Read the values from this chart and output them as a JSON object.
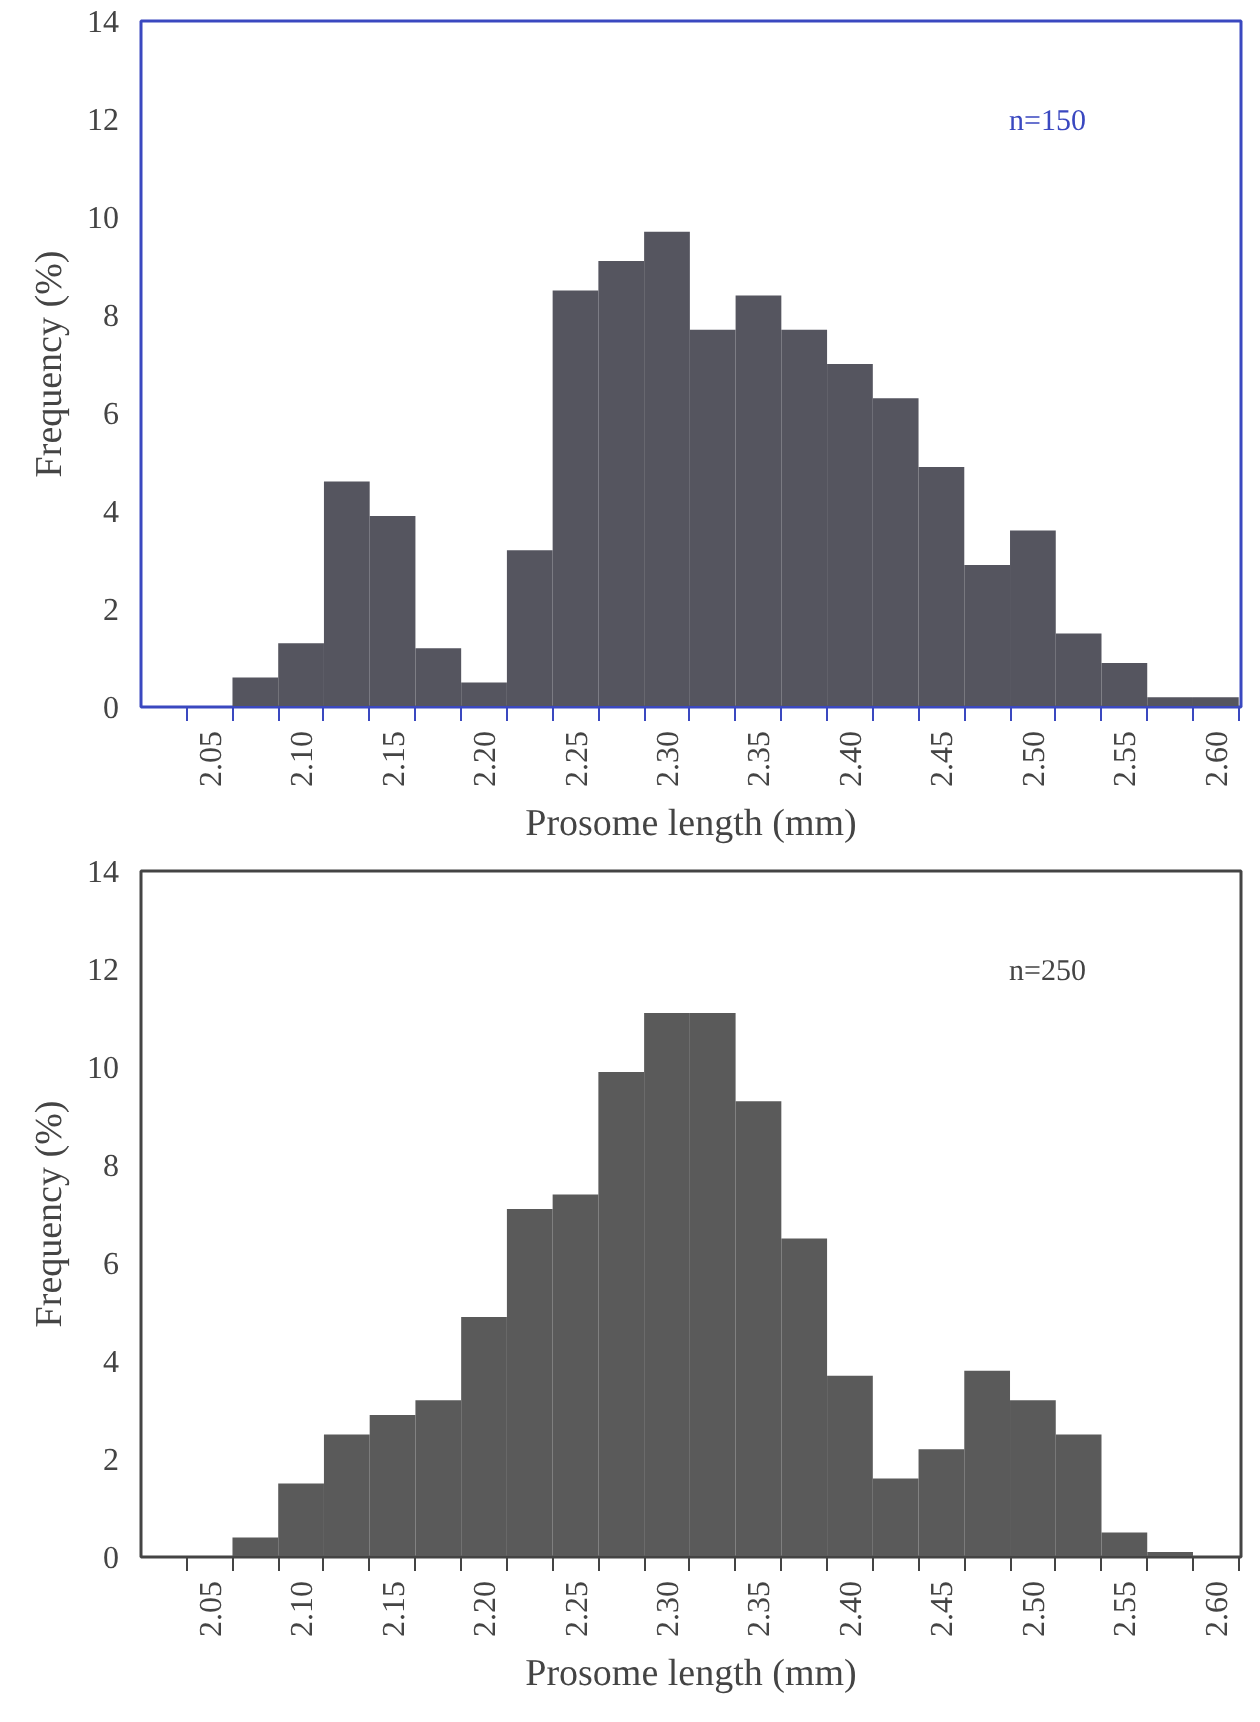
{
  "chart_data": [
    {
      "type": "bar",
      "xlabel": "Prosome length (mm)",
      "ylabel": "Frequency (%)",
      "annotations": [
        "n=150"
      ],
      "categories": [
        "2.05",
        null,
        "2.10",
        null,
        "2.15",
        null,
        "2.20",
        null,
        "2.25",
        null,
        "2.30",
        null,
        "2.35",
        null,
        "2.40",
        null,
        "2.45",
        null,
        "2.50",
        null,
        "2.55",
        null,
        "2.60"
      ],
      "values": [
        0,
        0.6,
        1.3,
        4.6,
        3.9,
        1.2,
        0.5,
        3.2,
        8.5,
        9.1,
        9.7,
        7.7,
        8.4,
        7.7,
        7.0,
        6.3,
        4.9,
        2.9,
        3.6,
        1.5,
        0.9,
        0.2,
        0.2
      ],
      "color": "#55555f",
      "ylim": [
        0,
        14
      ],
      "yticks": [
        0,
        2,
        4,
        6,
        8,
        10,
        12,
        14
      ],
      "grid": false
    },
    {
      "type": "bar",
      "xlabel": "Prosome length (mm)",
      "ylabel": "Frequency (%)",
      "annotations": [
        "n=250"
      ],
      "categories": [
        "2.05",
        null,
        "2.10",
        null,
        "2.15",
        null,
        "2.20",
        null,
        "2.25",
        null,
        "2.30",
        null,
        "2.35",
        null,
        "2.40",
        null,
        "2.45",
        null,
        "2.50",
        null,
        "2.55",
        null,
        "2.60"
      ],
      "values": [
        0,
        0.4,
        1.5,
        2.5,
        2.9,
        3.2,
        4.9,
        7.1,
        7.4,
        9.9,
        11.1,
        11.1,
        9.3,
        6.5,
        3.7,
        1.6,
        2.2,
        3.8,
        3.2,
        2.5,
        0.5,
        0.1,
        0
      ],
      "color": "#5a5a5a",
      "ylim": [
        0,
        14
      ],
      "yticks": [
        0,
        2,
        4,
        6,
        8,
        10,
        12,
        14
      ],
      "grid": false
    }
  ]
}
